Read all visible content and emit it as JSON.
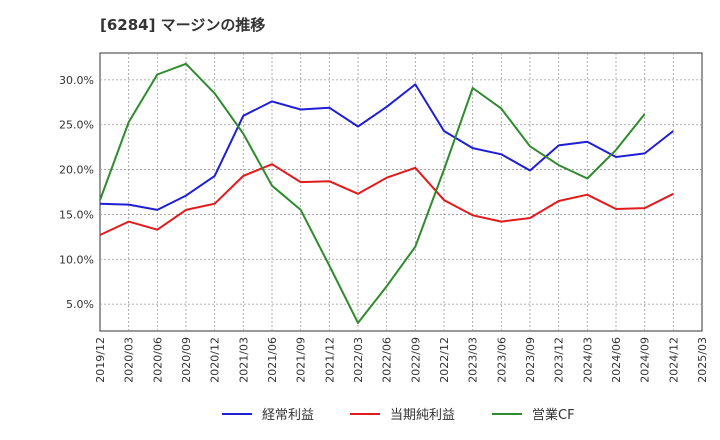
{
  "title": "[6284]  マージンの推移",
  "chart_data": {
    "type": "line",
    "title": "[6284]  マージンの推移",
    "xlabel": "",
    "ylabel": "",
    "x": [
      "2019/12",
      "2020/03",
      "2020/06",
      "2020/09",
      "2020/12",
      "2021/03",
      "2021/06",
      "2021/09",
      "2021/12",
      "2022/03",
      "2022/06",
      "2022/09",
      "2022/12",
      "2023/03",
      "2023/06",
      "2023/09",
      "2023/12",
      "2024/03",
      "2024/06",
      "2024/09",
      "2024/12",
      "2025/03"
    ],
    "y_ticks": [
      "5.0%",
      "10.0%",
      "15.0%",
      "20.0%",
      "25.0%",
      "30.0%"
    ],
    "y_tick_values": [
      5,
      10,
      15,
      20,
      25,
      30
    ],
    "ylim": [
      2.0,
      33.0
    ],
    "grid": true,
    "legend_position": "bottom",
    "series": [
      {
        "name": "経常利益",
        "color": "#1f1fd6",
        "values": [
          16.2,
          16.1,
          15.5,
          17.1,
          19.3,
          26.0,
          27.6,
          26.7,
          26.9,
          24.8,
          27.0,
          29.5,
          24.3,
          22.4,
          21.7,
          19.9,
          22.7,
          23.1,
          21.4,
          21.8,
          24.3,
          null
        ]
      },
      {
        "name": "当期純利益",
        "color": "#e31a1c",
        "values": [
          12.7,
          14.2,
          13.3,
          15.5,
          16.2,
          19.3,
          20.6,
          18.6,
          18.7,
          17.3,
          19.1,
          20.2,
          16.6,
          14.9,
          14.2,
          14.6,
          16.5,
          17.2,
          15.6,
          15.7,
          17.3,
          null
        ]
      },
      {
        "name": "営業CF",
        "color": "#2e8b2e",
        "values": [
          16.6,
          25.3,
          30.6,
          31.8,
          28.5,
          24.0,
          18.2,
          15.5,
          9.3,
          2.9,
          7.0,
          11.4,
          20.0,
          29.1,
          26.8,
          22.6,
          20.5,
          19.0,
          22.2,
          26.2,
          null,
          null
        ]
      }
    ]
  }
}
